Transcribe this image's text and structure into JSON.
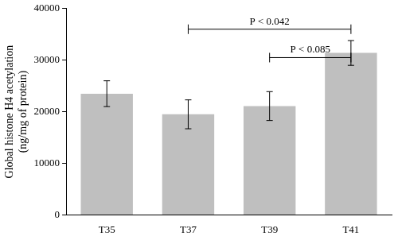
{
  "chart_data": {
    "type": "bar",
    "categories": [
      "T35",
      "T37",
      "T39",
      "T41"
    ],
    "values": [
      23500,
      19500,
      21100,
      31400
    ],
    "errors": [
      2500,
      2800,
      2800,
      2400
    ],
    "color": "#bfbfbf",
    "y_label": [
      "Global histone H4 acetylation",
      "(ng/mg of protein)"
    ],
    "ylim": [
      0,
      40000
    ],
    "yticks": [
      0,
      10000,
      20000,
      30000,
      40000
    ],
    "grid": false,
    "annotations": [
      {
        "text": "P < 0.042",
        "from": "T37",
        "to": "T41",
        "y": 36000
      },
      {
        "text": "P < 0.085",
        "from": "T39",
        "to": "T41",
        "y": 30500
      }
    ]
  }
}
